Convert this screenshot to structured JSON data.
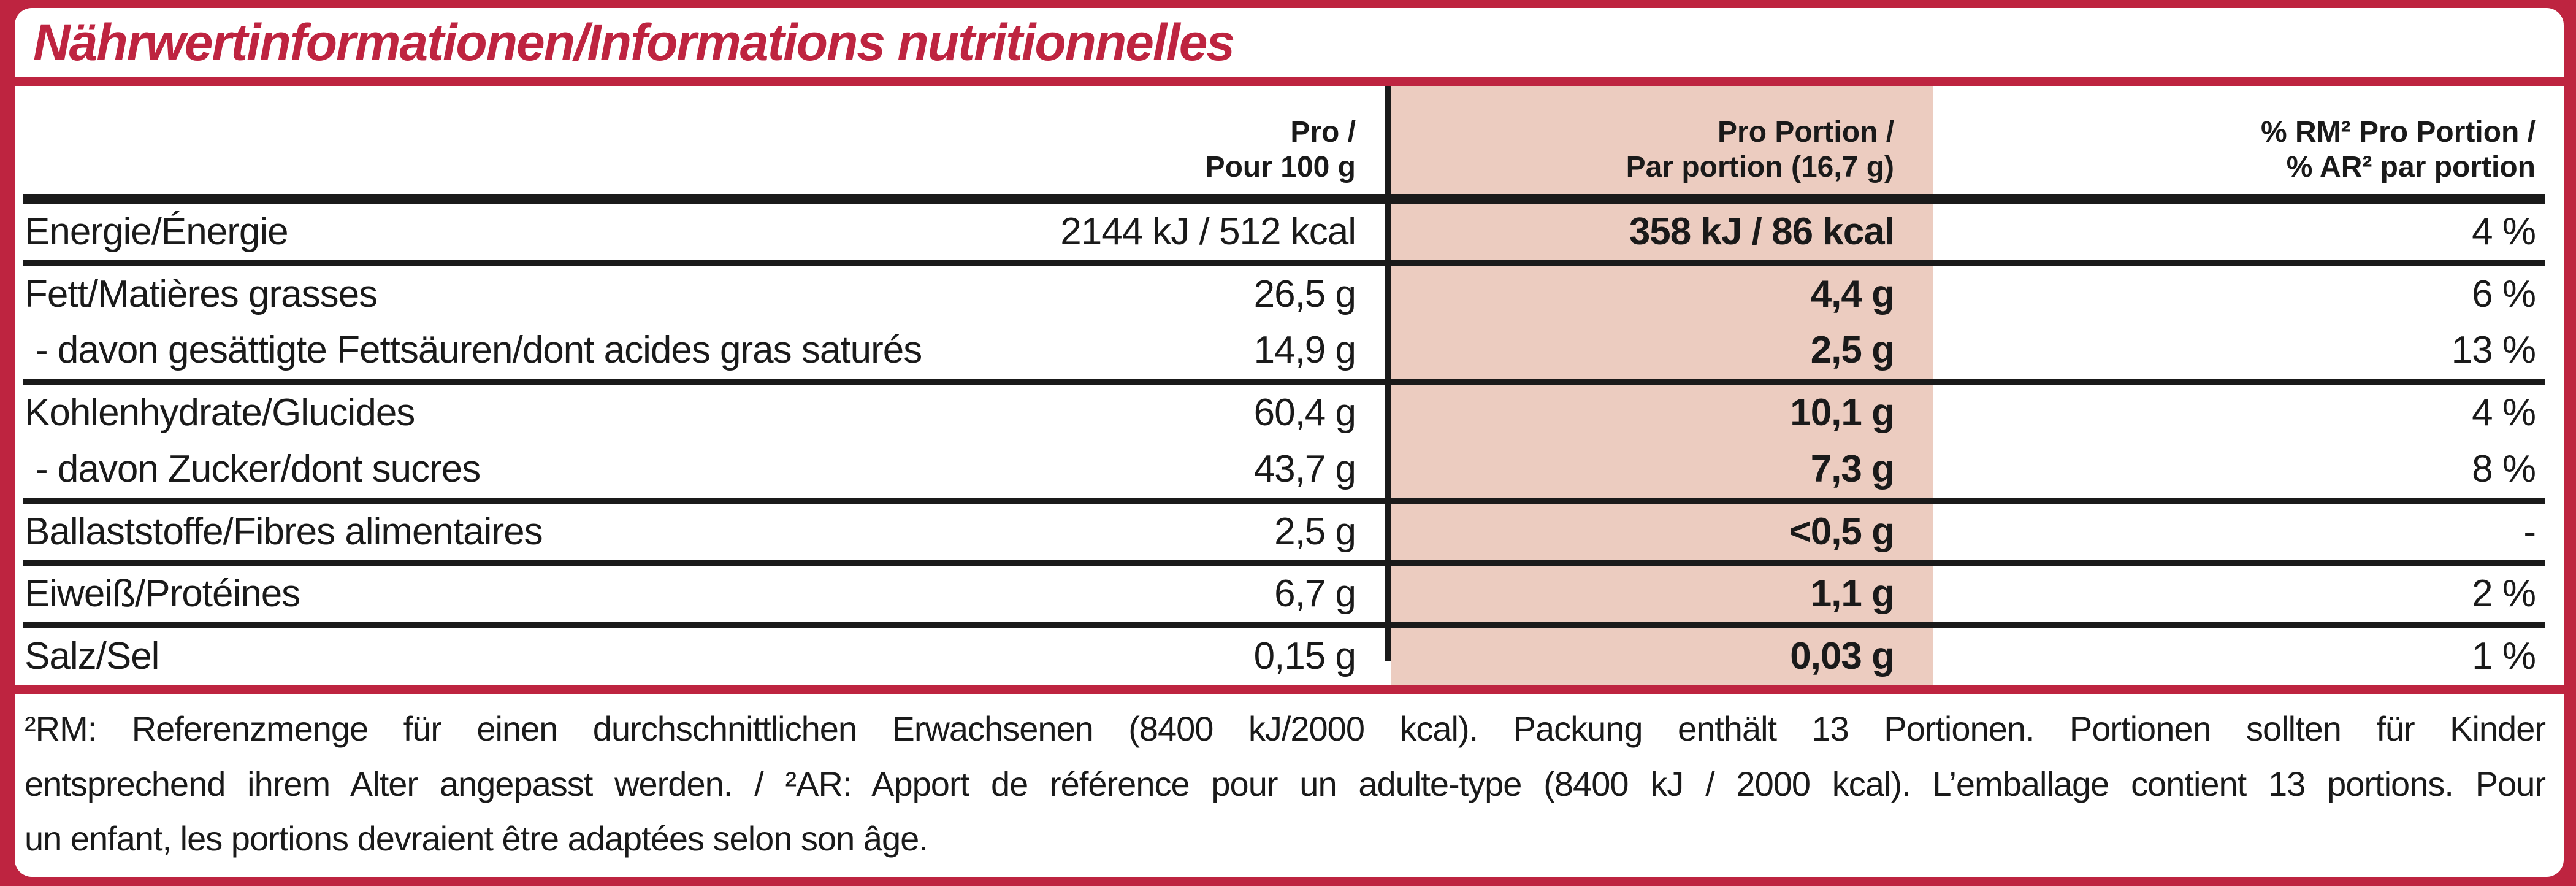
{
  "colors": {
    "red": "#BE2440",
    "pink": "#ECCCC0",
    "ink": "#1A1A1A"
  },
  "title": "Nährwertinformationen/Informations nutritionnelles",
  "table": {
    "header": {
      "per100": {
        "line1": "Pro /",
        "line2": "Pour 100 g"
      },
      "portion": {
        "line1": "Pro Portion /",
        "line2": "Par portion (16,7 g)"
      },
      "rm": {
        "line1": "% RM² Pro Portion /",
        "line2": "% AR² par portion"
      }
    },
    "rows": [
      {
        "label": "Energie/Énergie",
        "per100": "2144 kJ / 512 kcal",
        "portion": "358 kJ / 86 kcal",
        "rm": "4 %"
      },
      {
        "label": "Fett/Matières grasses",
        "per100": "26,5 g",
        "portion": "4,4 g",
        "rm": "6 %"
      },
      {
        "label": "- davon gesättigte Fettsäuren/dont acides gras saturés",
        "per100": "14,9 g",
        "portion": "2,5 g",
        "rm": "13 %"
      },
      {
        "label": "Kohlenhydrate/Glucides",
        "per100": "60,4 g",
        "portion": "10,1 g",
        "rm": "4 %"
      },
      {
        "label": "- davon Zucker/dont sucres",
        "per100": "43,7 g",
        "portion": "7,3 g",
        "rm": "8 %"
      },
      {
        "label": "Ballaststoffe/Fibres alimentaires",
        "per100": "2,5 g",
        "portion": "<0,5 g",
        "rm": "-"
      },
      {
        "label": "Eiweiß/Protéines",
        "per100": "6,7 g",
        "portion": "1,1 g",
        "rm": "2 %"
      },
      {
        "label": "Salz/Sel",
        "per100": "0,15 g",
        "portion": "0,03 g",
        "rm": "1 %"
      }
    ]
  },
  "footnote": {
    "lines": [
      "²RM: Referenzmenge für einen durchschnittlichen Erwachsenen (8400 kJ/2000 kcal). Packung enthält 13 Portionen. Portionen sollten für Kinder",
      "entsprechend ihrem Alter angepasst werden. / ²AR: Apport de référence pour un adulte-type (8400 kJ / 2000 kcal). L’emballage contient 13 portions. Pour",
      "un enfant, les portions devraient être adaptées selon son âge."
    ]
  }
}
